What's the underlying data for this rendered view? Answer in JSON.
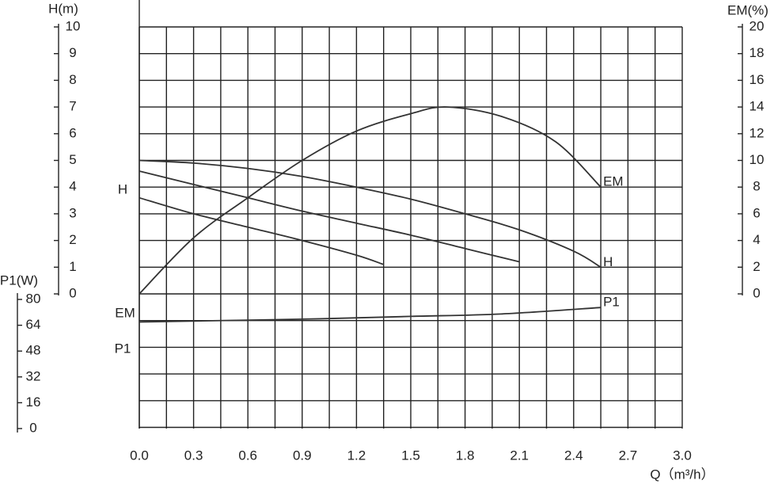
{
  "chart_data": {
    "type": "line",
    "xlabel": "Q（m³/h）",
    "ylabel": "H(m)",
    "y2label": "EM(%)",
    "y3label": "P1(W)",
    "annotations": [
      "H",
      "EM",
      "P1"
    ],
    "xlim": [
      0,
      3
    ],
    "xticks": [
      {
        "value": 0,
        "label": "0.0"
      },
      0.3,
      0.6,
      0.9,
      1.2,
      1.5,
      1.8,
      2.1,
      2.4,
      2.7,
      {
        "value": 3,
        "label": "3.0"
      }
    ],
    "ylim": [
      0,
      10
    ],
    "yticks": [
      0,
      1,
      2,
      3,
      4,
      5,
      6,
      7,
      8,
      9,
      10
    ],
    "y2lim": [
      0,
      20
    ],
    "y2ticks": [
      0,
      2,
      4,
      6,
      8,
      10,
      12,
      14,
      16,
      18,
      20
    ],
    "y3lim": [
      0,
      80
    ],
    "y3ticks": [
      0,
      16,
      32,
      48,
      64,
      80
    ],
    "grid": true,
    "color": "#333333",
    "series": [
      {
        "name": "H",
        "axis": "y",
        "x": [
          0,
          0.3,
          0.6,
          0.9,
          1.2,
          1.5,
          1.8,
          2.1,
          2.4,
          2.55
        ],
        "values": [
          5.0,
          4.9,
          4.7,
          4.4,
          4.0,
          3.55,
          3.0,
          2.4,
          1.6,
          1.0
        ]
      },
      {
        "axis": "y",
        "x": [
          0,
          0.3,
          0.6,
          0.9,
          1.2,
          1.5,
          1.8,
          2.1
        ],
        "values": [
          4.6,
          4.1,
          3.6,
          3.1,
          2.65,
          2.2,
          1.7,
          1.2
        ]
      },
      {
        "axis": "y",
        "x": [
          0,
          0.3,
          0.6,
          0.9,
          1.2,
          1.35
        ],
        "values": [
          3.6,
          3.0,
          2.5,
          2.0,
          1.45,
          1.1
        ]
      },
      {
        "name": "EM",
        "axis": "y2",
        "x": [
          0,
          0.3,
          0.6,
          0.9,
          1.2,
          1.5,
          1.7,
          2.0,
          2.3,
          2.55
        ],
        "values": [
          0,
          4.2,
          7.2,
          10,
          12.2,
          13.5,
          14,
          13.3,
          11.4,
          8
        ]
      },
      {
        "name": "P1",
        "axis": "y3",
        "x": [
          0,
          0.5,
          1,
          1.5,
          2,
          2.55
        ],
        "values": [
          66,
          67,
          68,
          69.5,
          71,
          75
        ]
      }
    ]
  }
}
